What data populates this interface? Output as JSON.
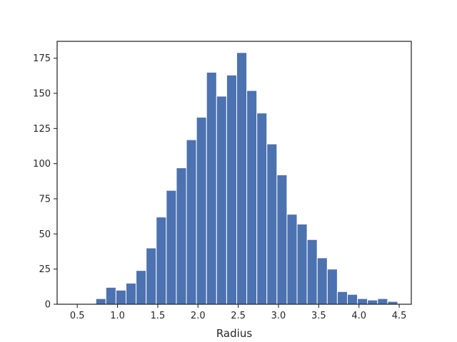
{
  "chart_data": {
    "type": "bar",
    "title": "",
    "xlabel": "Radius",
    "ylabel": "",
    "xlim": [
      0.25,
      4.65
    ],
    "ylim": [
      0,
      187
    ],
    "x_ticks": [
      0.5,
      1.0,
      1.5,
      2.0,
      2.5,
      3.0,
      3.5,
      4.0,
      4.5
    ],
    "x_tick_labels": [
      "0.5",
      "1.0",
      "1.5",
      "2.0",
      "2.5",
      "3.0",
      "3.5",
      "4.0",
      "4.5"
    ],
    "y_ticks": [
      0,
      25,
      50,
      75,
      100,
      125,
      150,
      175
    ],
    "y_tick_labels": [
      "0",
      "25",
      "50",
      "75",
      "100",
      "125",
      "150",
      "175"
    ],
    "grid": false,
    "bar_color": "#4c72b0",
    "bin_width": 0.125,
    "bin_starts": [
      0.731,
      0.856,
      0.981,
      1.106,
      1.231,
      1.356,
      1.481,
      1.606,
      1.731,
      1.856,
      1.981,
      2.106,
      2.231,
      2.356,
      2.481,
      2.606,
      2.731,
      2.856,
      2.981,
      3.106,
      3.231,
      3.356,
      3.481,
      3.606,
      3.731,
      3.856,
      3.981,
      4.106,
      4.231,
      4.356
    ],
    "values": [
      4,
      12,
      10,
      15,
      24,
      40,
      62,
      81,
      97,
      117,
      133,
      165,
      148,
      163,
      179,
      152,
      136,
      114,
      92,
      64,
      57,
      46,
      33,
      25,
      9,
      7,
      4,
      3,
      4,
      2
    ]
  }
}
